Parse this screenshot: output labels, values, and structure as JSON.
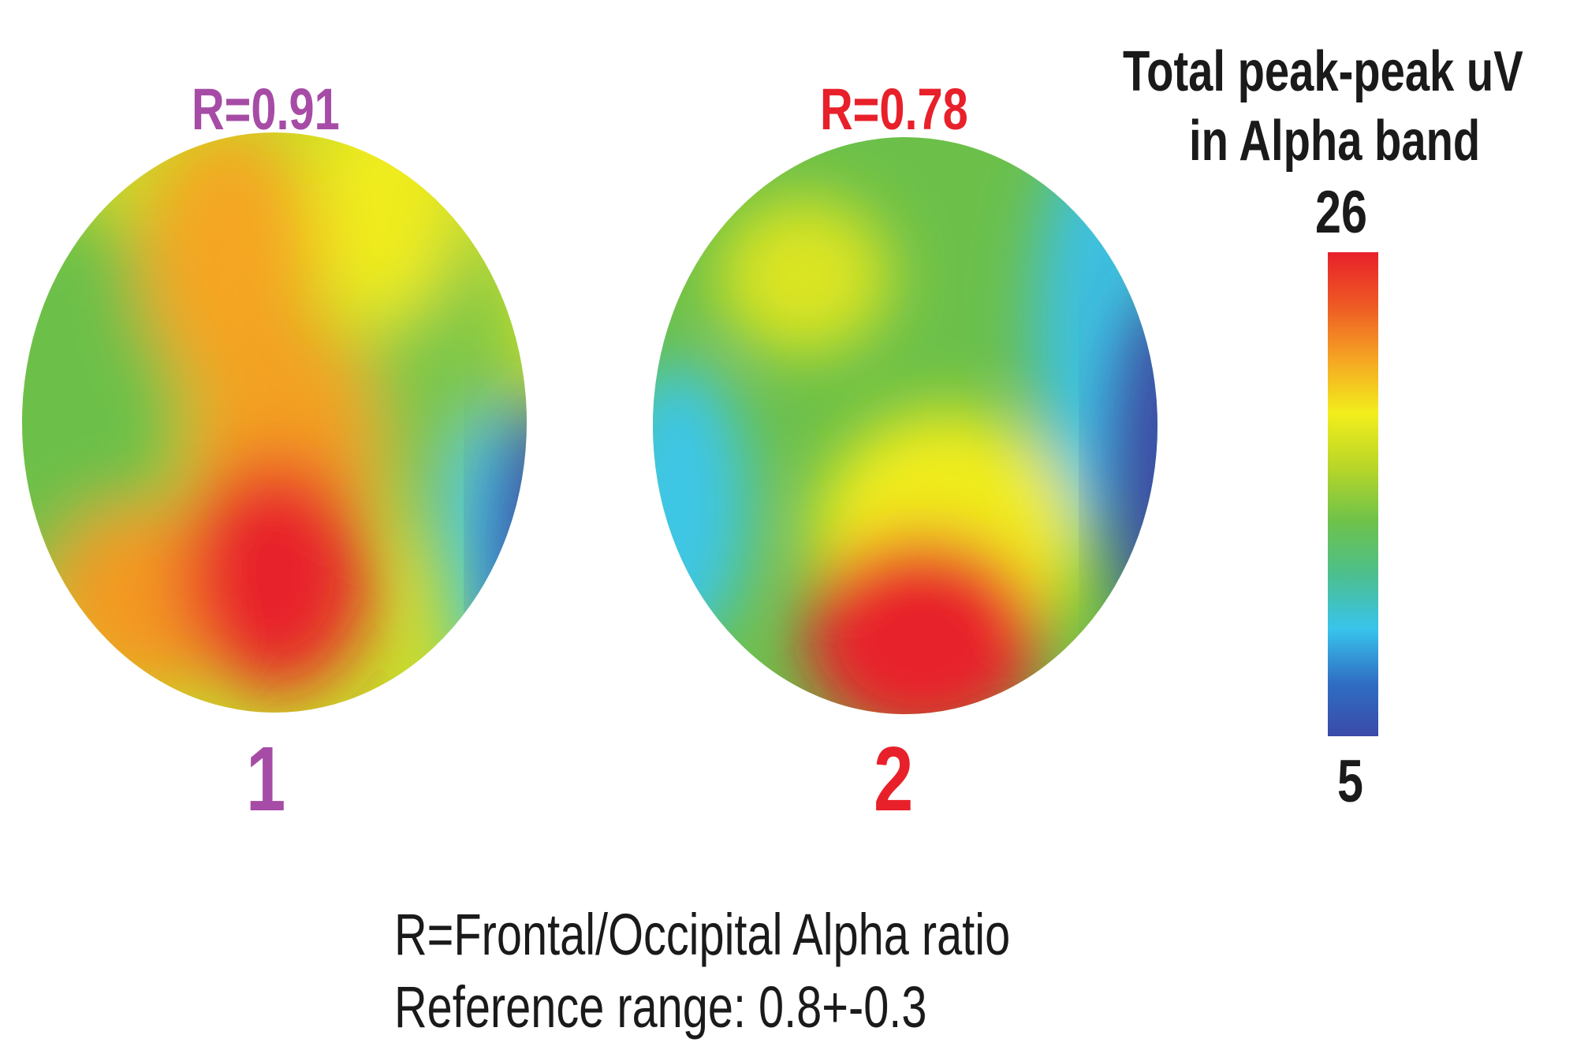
{
  "chart_data": {
    "type": "heatmap",
    "maps": [
      {
        "label": "1",
        "r_text": "R=0.91",
        "r_value": 0.91,
        "color": "#a64ca6"
      },
      {
        "label": "2",
        "r_text": "R=0.78",
        "r_value": 0.78,
        "color": "#e8202a"
      }
    ],
    "colorbar": {
      "title_lines": [
        "Total peak-peak uV",
        "in Alpha band"
      ],
      "max_label": "26",
      "min_label": "5",
      "range": [
        5,
        26
      ],
      "colors": [
        "#3a4aa8",
        "#2f6fc4",
        "#38c4ec",
        "#4cbf8e",
        "#6ec24a",
        "#b8d628",
        "#f2ee1c",
        "#f5a623",
        "#ee5a24",
        "#e8202a"
      ]
    },
    "notes": [
      "R=Frontal/Occipital Alpha ratio",
      "Reference range: 0.8+-0.3"
    ]
  }
}
